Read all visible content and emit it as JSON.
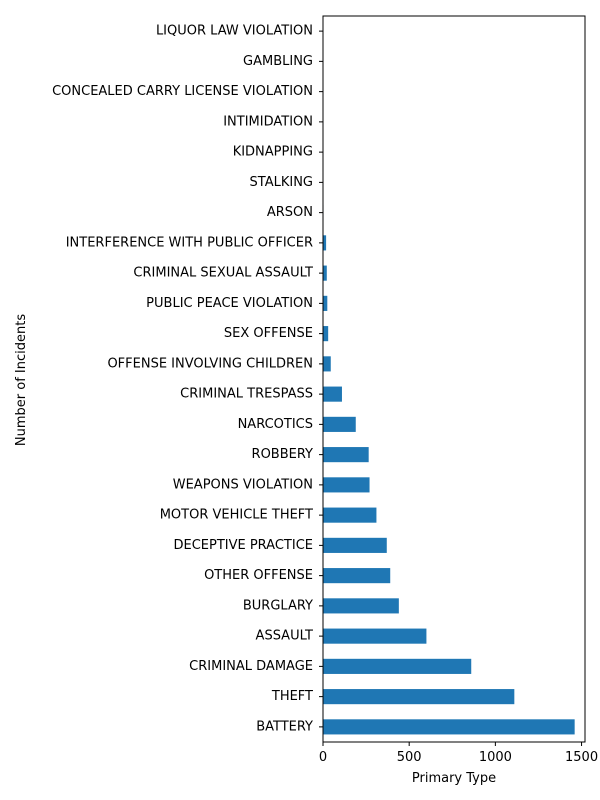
{
  "chart_data": {
    "type": "bar",
    "orientation": "horizontal",
    "xlabel": "Primary Type",
    "ylabel": "Number of Incidents",
    "xlim": [
      0,
      1520
    ],
    "xticks": [
      0,
      500,
      1000,
      1500
    ],
    "bar_color": "#1f77b4",
    "grid": false,
    "categories": [
      "BATTERY",
      "THEFT",
      "CRIMINAL DAMAGE",
      "ASSAULT",
      "BURGLARY",
      "OTHER OFFENSE",
      "DECEPTIVE PRACTICE",
      "MOTOR VEHICLE THEFT",
      "WEAPONS VIOLATION",
      "ROBBERY",
      "NARCOTICS",
      "CRIMINAL TRESPASS",
      "OFFENSE INVOLVING CHILDREN",
      "SEX OFFENSE",
      "PUBLIC PEACE VIOLATION",
      "CRIMINAL SEXUAL ASSAULT",
      "INTERFERENCE WITH PUBLIC OFFICER",
      "ARSON",
      "STALKING",
      "KIDNAPPING",
      "INTIMIDATION",
      "CONCEALED CARRY LICENSE VIOLATION",
      "GAMBLING",
      "LIQUOR LAW VIOLATION"
    ],
    "values": [
      1460,
      1110,
      860,
      600,
      440,
      390,
      370,
      310,
      270,
      265,
      190,
      110,
      45,
      30,
      25,
      22,
      18,
      3,
      2,
      1,
      1,
      1,
      1,
      1
    ]
  }
}
